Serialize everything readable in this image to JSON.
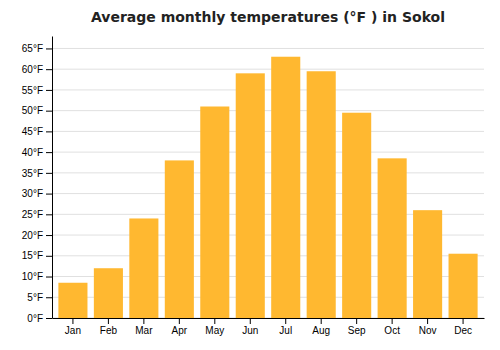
{
  "chart_data": {
    "type": "bar",
    "title": "Average monthly temperatures (°F ) in Sokol",
    "categories": [
      "Jan",
      "Feb",
      "Mar",
      "Apr",
      "May",
      "Jun",
      "Jul",
      "Aug",
      "Sep",
      "Oct",
      "Nov",
      "Dec"
    ],
    "values": [
      8.5,
      12,
      24,
      38,
      51,
      59,
      63,
      59.5,
      49.5,
      38.5,
      26,
      15.5
    ],
    "color": "#FFB830",
    "ylim": [
      0,
      68
    ],
    "yticks": [
      {
        "value": 0,
        "label": "0°F"
      },
      {
        "value": 5,
        "label": "5°F"
      },
      {
        "value": 10,
        "label": "10°F"
      },
      {
        "value": 15,
        "label": "15°F"
      },
      {
        "value": 20,
        "label": "20°F"
      },
      {
        "value": 25,
        "label": "25°F"
      },
      {
        "value": 30,
        "label": "30°F"
      },
      {
        "value": 35,
        "label": "35°F"
      },
      {
        "value": 40,
        "label": "40°F"
      },
      {
        "value": 45,
        "label": "45°F"
      },
      {
        "value": 50,
        "label": "50°F"
      },
      {
        "value": 55,
        "label": "55°F"
      },
      {
        "value": 60,
        "label": "60°F"
      },
      {
        "value": 65,
        "label": "65°F"
      }
    ],
    "grid": true
  }
}
